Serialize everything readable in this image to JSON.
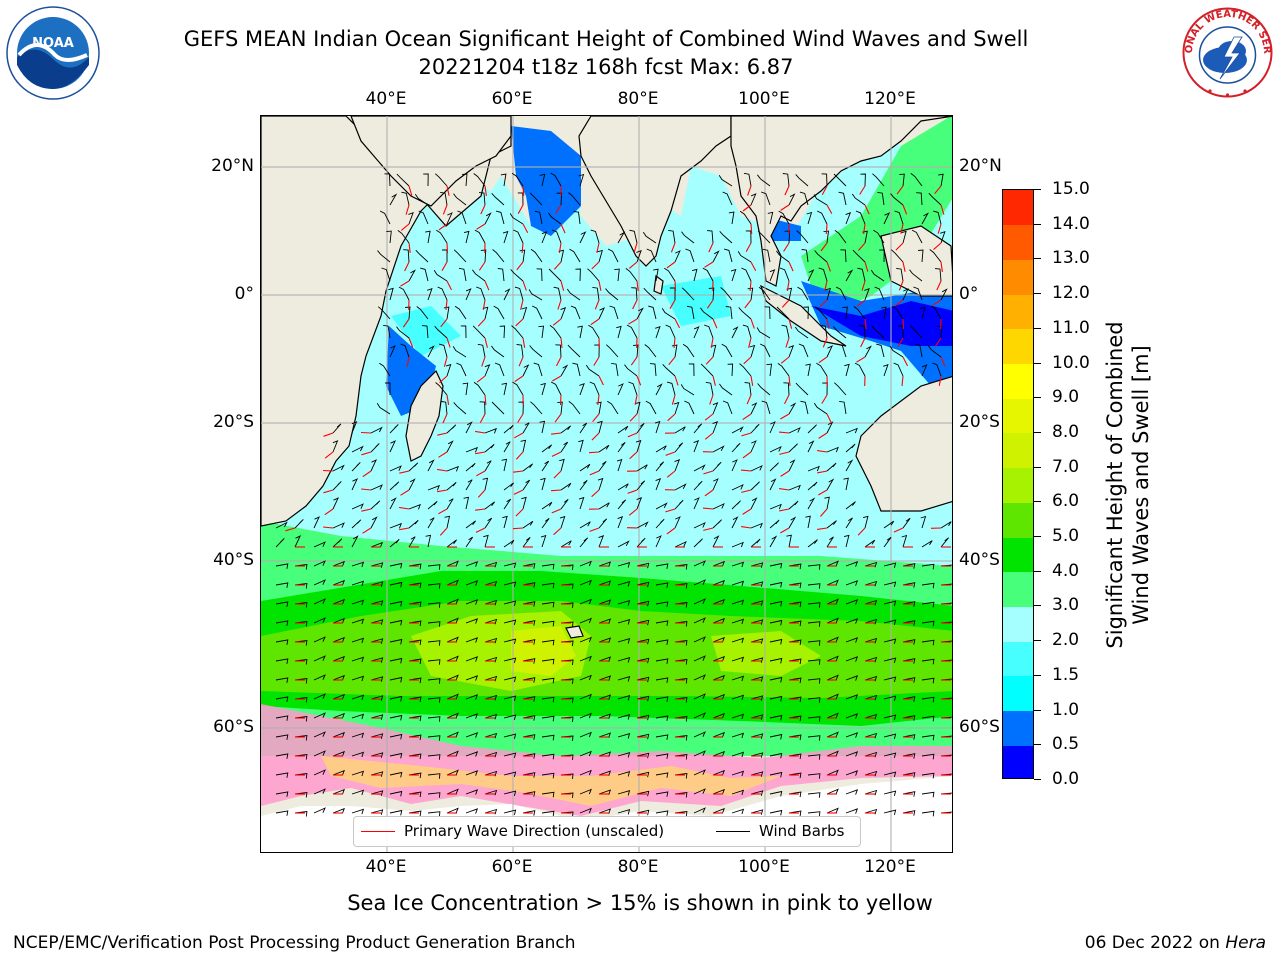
{
  "title": {
    "line1": "GEFS MEAN Indian Ocean Significant Height of Combined Wind Waves and Swell",
    "line2": "20221204 t18z 168h fcst   Max: 6.87"
  },
  "map": {
    "lon_ticks_top": [
      "40°E",
      "60°E",
      "80°E",
      "100°E",
      "120°E"
    ],
    "lon_ticks_bottom": [
      "40°E",
      "60°E",
      "80°E",
      "100°E",
      "120°E"
    ],
    "lat_ticks_left": [
      "20°N",
      "0°",
      "20°S",
      "40°S",
      "60°S"
    ],
    "lat_ticks_right": [
      "20°N",
      "0°",
      "20°S",
      "40°S",
      "60°S"
    ],
    "land_color": "#eeecde",
    "gridline_color": "#b0b0b0"
  },
  "legend": {
    "wave_direction_label": "Primary Wave Direction (unscaled)",
    "wave_direction_color": "#ff0000",
    "wind_barbs_label": "Wind Barbs",
    "wind_barbs_color": "#000000"
  },
  "colorbar": {
    "title_line1": "Significant Height of Combined",
    "title_line2": "Wind Waves and Swell [m]",
    "tick_labels": [
      "0.0",
      "0.5",
      "1.0",
      "1.5",
      "2.0",
      "3.0",
      "4.0",
      "5.0",
      "6.0",
      "7.0",
      "8.0",
      "9.0",
      "10.0",
      "11.0",
      "12.0",
      "13.0",
      "14.0",
      "15.0"
    ],
    "colors": [
      "#0000ff",
      "#0070ff",
      "#00ffff",
      "#47ffff",
      "#a6ffff",
      "#47ff7a",
      "#00e400",
      "#5ee600",
      "#a6f200",
      "#cff200",
      "#e6f500",
      "#ffff00",
      "#ffd700",
      "#ffb000",
      "#ff8c00",
      "#ff5a00",
      "#ff2800"
    ]
  },
  "footer": {
    "ice_note": "Sea Ice Concentration > 15% is shown in pink to yellow",
    "credit_left": "NCEP/EMC/Verification Post Processing Product Generation Branch",
    "credit_date": "06 Dec 2022 on ",
    "credit_host": "Hera"
  },
  "logos": {
    "noaa_text": "NOAA",
    "nws_text": "NATIONAL WEATHER SERVICE"
  }
}
